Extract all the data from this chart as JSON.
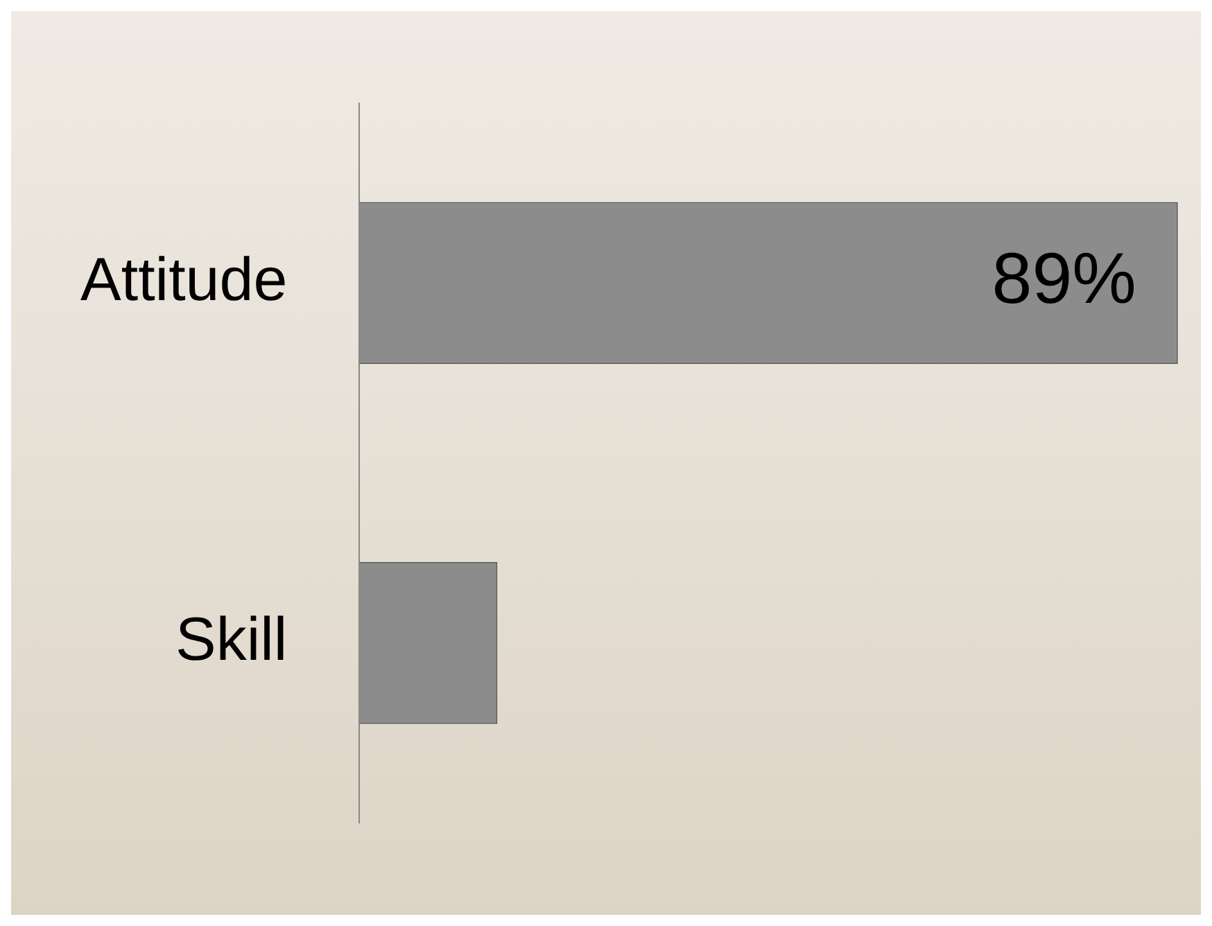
{
  "chart_data": {
    "type": "bar",
    "orientation": "horizontal",
    "categories": [
      "Attitude",
      "Skill"
    ],
    "values": [
      89,
      15
    ],
    "value_labels": [
      "89%",
      null
    ],
    "color": "#8c8c8c",
    "grid": false,
    "legend": false
  }
}
